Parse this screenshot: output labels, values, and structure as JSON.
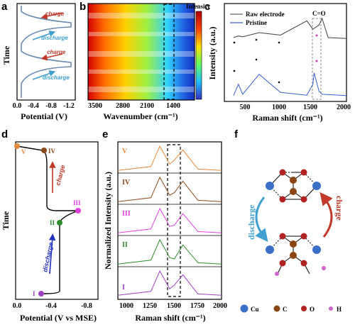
{
  "panels": {
    "a": {
      "label": "a",
      "ylabel": "Time",
      "xlabel": "Potential (V)",
      "ticks": [
        "0.0",
        "-0.4",
        "-0.8",
        "-1.2"
      ],
      "annotations": [
        "charge",
        "discharge",
        "charge",
        "discharge"
      ]
    },
    "b": {
      "label": "b",
      "xlabel": "Wavenumber (cm⁻¹)",
      "ticks": [
        "3500",
        "2800",
        "2100",
        "1400"
      ],
      "colorbar_label": "Intensity"
    },
    "c": {
      "label": "c",
      "ylabel": "Intensity (a.u.)",
      "xlabel": "Raman shift (cm⁻¹)",
      "ticks": [
        "500",
        "1000",
        "1500",
        "2000"
      ],
      "legend": [
        "Raw electrode",
        "Pristine"
      ],
      "annotation": "C=O"
    },
    "d": {
      "label": "d",
      "ylabel": "Time",
      "xlabel": "Potential (V vs MSE)",
      "ticks": [
        "0.0",
        "-0.4",
        "-0.8"
      ],
      "points": [
        "V",
        "IV",
        "III",
        "II",
        "I"
      ],
      "arrows": [
        "charge",
        "discharge"
      ]
    },
    "e": {
      "label": "e",
      "ylabel": "Normalized Intensity (a.u.)",
      "xlabel": "Raman shift (cm⁻¹)",
      "ticks": [
        "1000",
        "1250",
        "1500",
        "1750",
        "2000"
      ],
      "traces": [
        "V",
        "IV",
        "III",
        "II",
        "I"
      ]
    },
    "f": {
      "label": "f",
      "arrows": [
        "discharge",
        "charge"
      ],
      "legend": [
        "Cu",
        "C",
        "O",
        "H"
      ]
    }
  },
  "colors": {
    "blue": "#3a5fcd",
    "darkred": "#c0392b",
    "lightblue": "#40a0d0",
    "orange": "#e8883a",
    "brown": "#8b4a1c",
    "magenta": "#e040e0",
    "green": "#2e8b2e",
    "purple": "#a040c0",
    "cu": "#3a6fc8",
    "c": "#8b4513",
    "o": "#b22222",
    "h": "#cc66cc"
  },
  "chart_data": [
    {
      "panel": "c",
      "type": "line",
      "xlabel": "Raman shift (cm⁻¹)",
      "ylabel": "Intensity (a.u.)",
      "xlim": [
        0,
        2000
      ],
      "series": [
        {
          "name": "Raw electrode",
          "x": [
            150,
            230,
            300,
            570,
            920,
            1350,
            1450,
            1550,
            1600,
            1700,
            2000
          ],
          "y": [
            0.72,
            0.74,
            0.73,
            0.78,
            0.75,
            0.92,
            0.82,
            0.87,
            0.95,
            0.72,
            0.71
          ]
        },
        {
          "name": "Pristine",
          "x": [
            150,
            230,
            300,
            570,
            920,
            1350,
            1450,
            1470,
            1550,
            1600,
            2000
          ],
          "y": [
            0.05,
            0.3,
            0.08,
            0.52,
            0.12,
            0.06,
            0.3,
            0.55,
            0.15,
            0.08,
            0.05
          ]
        }
      ]
    },
    {
      "panel": "e",
      "type": "line",
      "xlabel": "Raman shift (cm⁻¹)",
      "ylabel": "Normalized Intensity (a.u.)",
      "xlim": [
        900,
        2000
      ],
      "series": [
        {
          "name": "V",
          "x": [
            900,
            1250,
            1345,
            1450,
            1500,
            1590,
            1750,
            2000
          ],
          "y": [
            0.05,
            0.2,
            1.0,
            0.3,
            0.45,
            0.85,
            0.1,
            0.05
          ]
        },
        {
          "name": "IV",
          "x": [
            900,
            1250,
            1345,
            1450,
            1500,
            1590,
            1750,
            2000
          ],
          "y": [
            0.05,
            0.2,
            1.0,
            0.3,
            0.4,
            0.85,
            0.1,
            0.05
          ]
        },
        {
          "name": "III",
          "x": [
            900,
            1250,
            1345,
            1450,
            1500,
            1590,
            1750,
            2000
          ],
          "y": [
            0.05,
            0.2,
            1.0,
            0.3,
            0.35,
            0.8,
            0.1,
            0.05
          ]
        },
        {
          "name": "II",
          "x": [
            900,
            1250,
            1345,
            1450,
            1500,
            1590,
            1750,
            2000
          ],
          "y": [
            0.05,
            0.2,
            1.0,
            0.3,
            0.25,
            0.8,
            0.1,
            0.05
          ]
        },
        {
          "name": "I",
          "x": [
            900,
            1250,
            1345,
            1450,
            1500,
            1590,
            1750,
            2000
          ],
          "y": [
            0.05,
            0.2,
            1.0,
            0.3,
            0.45,
            0.85,
            0.1,
            0.05
          ]
        }
      ]
    },
    {
      "panel": "d",
      "type": "line",
      "xlabel": "Potential (V vs MSE)",
      "ylabel": "Time",
      "points": [
        {
          "name": "V",
          "x": 0.0
        },
        {
          "name": "IV",
          "x": -0.3
        },
        {
          "name": "III",
          "x": -0.72
        },
        {
          "name": "II",
          "x": -0.5
        },
        {
          "name": "I",
          "x": -0.3
        }
      ]
    }
  ]
}
